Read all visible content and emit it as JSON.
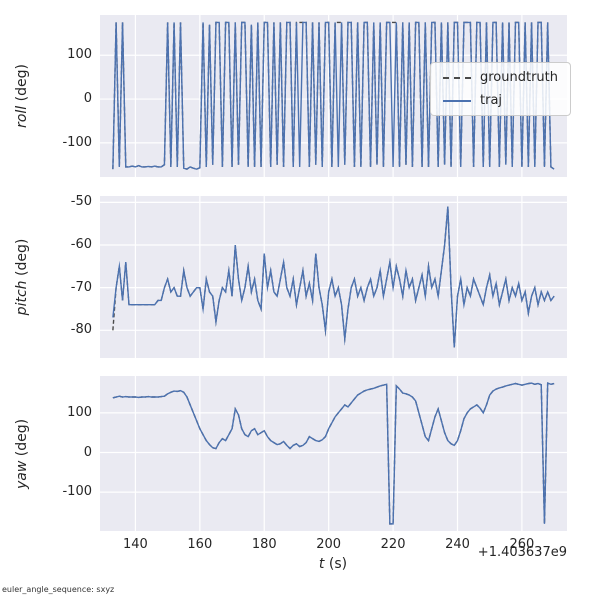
{
  "figure": {
    "footer": "euler_angle_sequence: sxyz"
  },
  "colors": {
    "axes_bg": "#eaeaf2",
    "grid": "#ffffff",
    "traj": "#4c72b0",
    "groundtruth": "#4a4a4a",
    "text": "#262626",
    "legend_bg": "#ffffff",
    "legend_border": "#cccccc"
  },
  "legend": {
    "entries": [
      {
        "label": "groundtruth",
        "style": "dashed",
        "color": "#4a4a4a"
      },
      {
        "label": "traj",
        "style": "solid",
        "color": "#4c72b0"
      }
    ]
  },
  "chart_data": {
    "type": "line",
    "xlabel_var": "t",
    "xlabel_unit": " (s)",
    "x_offset": "+1.403637e9",
    "xlim": [
      129,
      274
    ],
    "xticks": [
      140,
      160,
      180,
      200,
      220,
      240,
      260
    ],
    "x": [
      133,
      134,
      135,
      136,
      137,
      138,
      139,
      140,
      141,
      142,
      143,
      144,
      145,
      146,
      147,
      148,
      149,
      150,
      151,
      152,
      153,
      154,
      155,
      156,
      157,
      158,
      159,
      160,
      161,
      162,
      163,
      164,
      165,
      166,
      167,
      168,
      169,
      170,
      171,
      172,
      173,
      174,
      175,
      176,
      177,
      178,
      179,
      180,
      181,
      182,
      183,
      184,
      185,
      186,
      187,
      188,
      189,
      190,
      191,
      192,
      193,
      194,
      195,
      196,
      197,
      198,
      199,
      200,
      201,
      202,
      203,
      204,
      205,
      206,
      207,
      208,
      209,
      210,
      211,
      212,
      213,
      214,
      215,
      216,
      217,
      218,
      219,
      220,
      221,
      222,
      223,
      224,
      225,
      226,
      227,
      228,
      229,
      230,
      231,
      232,
      233,
      234,
      235,
      236,
      237,
      238,
      239,
      240,
      241,
      242,
      243,
      244,
      245,
      246,
      247,
      248,
      249,
      250,
      251,
      252,
      253,
      254,
      255,
      256,
      257,
      258,
      259,
      260,
      261,
      262,
      263,
      264,
      265,
      266,
      267,
      268,
      269,
      270
    ],
    "subplots": [
      {
        "ylabel_var": "roll",
        "ylabel_unit": " (deg)",
        "ylim": [
          -178,
          192
        ],
        "yticks": [
          -100,
          0,
          100
        ],
        "series": [
          {
            "name": "groundtruth",
            "color": "#4a4a4a",
            "dash": [
              4,
              2.5
            ],
            "same_as": "traj",
            "overrides": {
              "191": 175,
              "203": 175,
              "220": 175
            }
          },
          {
            "name": "traj",
            "color": "#4c72b0",
            "values": [
              -160,
              175,
              -155,
              175,
              -155,
              -155,
              -153,
              -155,
              -152,
              -155,
              -155,
              -154,
              -155,
              -153,
              -155,
              -155,
              -150,
              175,
              -155,
              175,
              -155,
              175,
              -158,
              -160,
              -155,
              -158,
              -160,
              -157,
              175,
              -155,
              170,
              -150,
              175,
              175,
              -155,
              175,
              175,
              -155,
              175,
              -150,
              175,
              175,
              -155,
              170,
              -155,
              175,
              -155,
              175,
              175,
              -155,
              175,
              -150,
              175,
              -155,
              175,
              175,
              -155,
              175,
              -155,
              175,
              175,
              -155,
              175,
              -150,
              175,
              -155,
              175,
              175,
              -155,
              175,
              -155,
              175,
              -150,
              175,
              175,
              -155,
              175,
              -155,
              175,
              175,
              -155,
              175,
              -150,
              175,
              -155,
              175,
              175,
              -155,
              175,
              -155,
              175,
              -150,
              175,
              -155,
              175,
              175,
              -155,
              175,
              -155,
              175,
              175,
              -155,
              175,
              -150,
              175,
              -155,
              175,
              175,
              -155,
              175,
              175,
              175,
              -155,
              175,
              175,
              -155,
              175,
              -155,
              175,
              175,
              -155,
              175,
              -150,
              175,
              -155,
              175,
              175,
              -155,
              175,
              -155,
              175,
              -155,
              175,
              175,
              -155,
              175,
              -155,
              -160
            ]
          }
        ]
      },
      {
        "ylabel_var": "pitch",
        "ylabel_unit": " (deg)",
        "ylim": [
          -86.5,
          -48.5
        ],
        "yticks": [
          -80,
          -70,
          -60,
          -50
        ],
        "series": [
          {
            "name": "groundtruth",
            "color": "#4a4a4a",
            "dash": [
              4,
              2.5
            ],
            "same_as": "traj",
            "overrides": {
              "133": -80
            }
          },
          {
            "name": "traj",
            "color": "#4c72b0",
            "values": [
              -77,
              -70,
              -65,
              -73,
              -64,
              -74,
              -74,
              -74,
              -74,
              -74,
              -74,
              -74,
              -74,
              -74,
              -73,
              -73,
              -70,
              -68,
              -71,
              -70,
              -72,
              -72,
              -66,
              -70,
              -72,
              -71,
              -70,
              -70,
              -75,
              -68,
              -71,
              -72,
              -78,
              -73,
              -70,
              -71,
              -66,
              -72,
              -60,
              -68,
              -73,
              -70,
              -65,
              -71,
              -68,
              -73,
              -75,
              -62,
              -70,
              -66,
              -71,
              -72,
              -68,
              -64,
              -70,
              -72,
              -68,
              -74,
              -70,
              -66,
              -72,
              -69,
              -73,
              -62,
              -70,
              -74,
              -80,
              -71,
              -68,
              -72,
              -70,
              -74,
              -82,
              -75,
              -70,
              -68,
              -72,
              -70,
              -73,
              -70,
              -68,
              -72,
              -70,
              -66,
              -72,
              -68,
              -64,
              -70,
              -65,
              -68,
              -72,
              -66,
              -70,
              -68,
              -73,
              -70,
              -67,
              -72,
              -65,
              -70,
              -68,
              -72,
              -66,
              -60,
              -51,
              -70,
              -84,
              -72,
              -68,
              -74,
              -70,
              -72,
              -68,
              -70,
              -72,
              -74,
              -70,
              -67,
              -72,
              -69,
              -74,
              -71,
              -68,
              -73,
              -70,
              -72,
              -69,
              -73,
              -71,
              -76,
              -72,
              -70,
              -74,
              -71,
              -73,
              -71,
              -73,
              -72
            ]
          }
        ]
      },
      {
        "ylabel_var": "yaw",
        "ylabel_unit": " (deg)",
        "ylim": [
          -198,
          193
        ],
        "yticks": [
          -100,
          0,
          100
        ],
        "series": [
          {
            "name": "groundtruth",
            "color": "#4a4a4a",
            "dash": [
              4,
              2.5
            ],
            "same_as": "traj",
            "overrides": {}
          },
          {
            "name": "traj",
            "color": "#4c72b0",
            "values": [
              138,
              140,
              142,
              140,
              141,
              140,
              140,
              140,
              139,
              140,
              140,
              141,
              140,
              140,
              140,
              141,
              142,
              148,
              152,
              155,
              154,
              156,
              152,
              140,
              120,
              100,
              80,
              60,
              45,
              30,
              20,
              12,
              10,
              25,
              35,
              30,
              45,
              60,
              110,
              95,
              60,
              45,
              40,
              55,
              60,
              45,
              50,
              55,
              40,
              30,
              25,
              20,
              22,
              28,
              18,
              10,
              18,
              22,
              15,
              18,
              25,
              40,
              35,
              30,
              28,
              32,
              40,
              60,
              75,
              90,
              100,
              110,
              120,
              115,
              125,
              135,
              145,
              150,
              155,
              158,
              160,
              162,
              165,
              168,
              170,
              172,
              -180,
              -180,
              168,
              160,
              150,
              148,
              145,
              140,
              130,
              100,
              70,
              40,
              30,
              60,
              90,
              110,
              80,
              50,
              30,
              22,
              18,
              30,
              55,
              85,
              100,
              110,
              115,
              120,
              112,
              100,
              120,
              145,
              155,
              160,
              163,
              165,
              168,
              170,
              172,
              174,
              172,
              170,
              172,
              174,
              175,
              172,
              174,
              171,
              -180,
              175,
              172,
              174
            ]
          }
        ]
      }
    ]
  }
}
